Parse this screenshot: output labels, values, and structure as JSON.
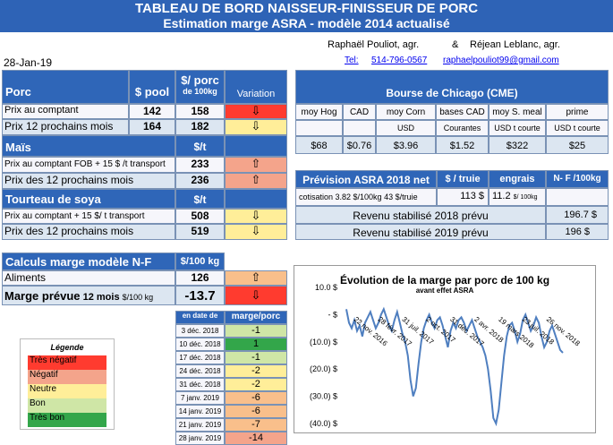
{
  "banner": {
    "line1": "TABLEAU DE BORD NAISSEUR-FINISSEUR DE PORC",
    "line2": "Estimation marge ASRA - modèle 2014 actualisé"
  },
  "date": "28-Jan-19",
  "authors": {
    "a1": "Raphaël Pouliot, agr.",
    "amp": "&",
    "a2": "Réjean Leblanc, agr.",
    "tel": "Tel:",
    "phone": "514-796-0567",
    "email": "raphaelpouliot99@gmail.com"
  },
  "porc": {
    "title": "Porc",
    "pool_header": "$ pool",
    "porc_header": "$/ porc",
    "porc_sub": "de 100kg",
    "variation": "Variation",
    "rows": [
      {
        "label": "Prix au comptant",
        "pool": "142",
        "porc": "158",
        "arrow": "⇩"
      },
      {
        "label": "Prix 12 prochains mois",
        "pool": "164",
        "porc": "182",
        "arrow": "⇩"
      }
    ]
  },
  "mais": {
    "title": "Maïs",
    "unit": "$/t",
    "rows": [
      {
        "label": "Prix au comptant FOB + 15 $ /t transport",
        "value": "233",
        "arrow": "⇧"
      },
      {
        "label": "Prix des 12 prochains mois",
        "value": "236",
        "arrow": "⇧"
      }
    ]
  },
  "soya": {
    "title": "Tourteau de soya",
    "unit": "$/t",
    "rows": [
      {
        "label": "Prix au comptant + 15 $/ t transport",
        "value": "508",
        "arrow": "⇩"
      },
      {
        "label": "Prix des 12 prochains mois",
        "value": "519",
        "arrow": "⇩"
      }
    ]
  },
  "marge": {
    "title": "Calculs marge  modèle N-F",
    "unit": "$/100 kg",
    "aliments_label": "Aliments",
    "aliments_value": "126",
    "aliments_arrow": "⇧",
    "prevue_label": "Marge prévue",
    "prevue_sub1": "12 mois",
    "prevue_sub2": "$/100 kg",
    "prevue_value": "-13.7",
    "prevue_arrow": "⇩"
  },
  "history": {
    "col1": "en date de",
    "col2": "marge/porc",
    "rows": [
      {
        "date": "3 déc. 2018",
        "value": "-1"
      },
      {
        "date": "10 déc. 2018",
        "value": "1"
      },
      {
        "date": "17 déc. 2018",
        "value": "-1"
      },
      {
        "date": "24 déc. 2018",
        "value": "-2"
      },
      {
        "date": "31 déc. 2018",
        "value": "-2"
      },
      {
        "date": "7 janv. 2019",
        "value": "-6"
      },
      {
        "date": "14 janv. 2019",
        "value": "-6"
      },
      {
        "date": "21 janv. 2019",
        "value": "-7"
      },
      {
        "date": "28 janv. 2019",
        "value": "-14"
      }
    ]
  },
  "legend": {
    "title": "Légende",
    "items": [
      "Très négatif",
      "Négatif",
      "Neutre",
      "Bon",
      "Très bon"
    ]
  },
  "bourse": {
    "title": "Bourse de Chicago (CME)",
    "headers": [
      "moy Hog",
      "CAD",
      "moy Corn",
      "bases CAD",
      "moy S. meal",
      "prime"
    ],
    "units": [
      "",
      "",
      "USD",
      "Courantes",
      "USD t courte",
      "USD t courte"
    ],
    "values": [
      "$68",
      "$0.76",
      "$3.96",
      "$1.52",
      "$322",
      "$25"
    ]
  },
  "prevision": {
    "title": "Prévision ASRA 2018 net",
    "truie": "$ / truie",
    "engrais": "engrais",
    "nf": "N- F /100kg",
    "cotisation_label": "cotisation 3.82 $/100kg  43 $/truie",
    "cotisation_truie": "113  $",
    "cotisation_engrais": "11.2",
    "cotisation_unit": "$/ 100kg",
    "rev2018_label": "Revenu stabilisé 2018 prévu",
    "rev2018_value": "196.7 $",
    "rev2019_label": "Revenu stabilisé 2019 prévu",
    "rev2019_value": "196 $"
  },
  "chart_data": {
    "type": "line",
    "title": "Évolution  de la marge par porc de 100  kg",
    "subtitle": "avant effet ASRA",
    "ylim": [
      -40,
      10
    ],
    "yticks": [
      "10.0 $",
      "-  $",
      "(10.0) $",
      "(20.0) $",
      "(30.0) $",
      "(40.0) $"
    ],
    "xticks": [
      "22 nov. 2016",
      "28 févr. 2017",
      "31 juil. 2017",
      "2 oct. 2017",
      "31 déc. 2017",
      "2 avr. 2018",
      "19 mars 2018",
      "23 juil. 2018",
      "26 nov. 2018"
    ],
    "series": [
      {
        "values": [
          2,
          -3,
          -5,
          -2,
          -6,
          -4,
          -8,
          -3,
          -1,
          1,
          -2,
          -5,
          -3,
          0,
          2,
          -1,
          -4,
          -6,
          -2,
          1,
          -3,
          -7,
          -10,
          -15,
          -24,
          -30,
          -27,
          -18,
          -10,
          -5,
          -2,
          0,
          -3,
          -5,
          -2,
          -1,
          -4,
          -8,
          -12,
          -6,
          -3,
          -5,
          -2,
          -1,
          -3,
          -6,
          -4,
          -2,
          -5,
          -8,
          -10,
          -12,
          -15,
          -20,
          -28,
          -38,
          -40,
          -35,
          -25,
          -15,
          -8,
          -4,
          -3,
          -6,
          -10,
          -7,
          -2,
          0,
          -3,
          -6,
          -4,
          -1,
          -3,
          -8,
          -12,
          -10,
          -6,
          -4,
          -7,
          -10,
          -13,
          -14
        ]
      }
    ],
    "color": "#4f7fc0"
  }
}
